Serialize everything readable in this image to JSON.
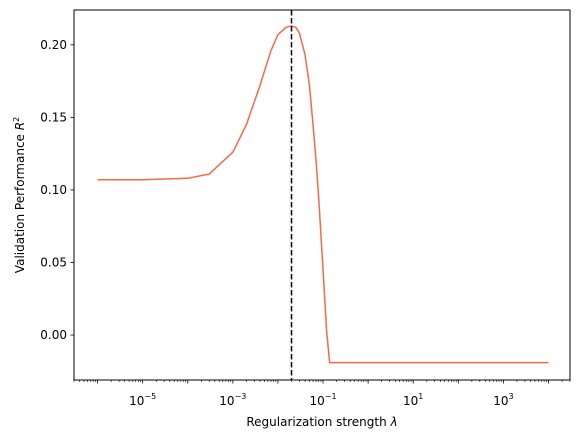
{
  "chart_data": {
    "type": "line",
    "x_scale": "log",
    "xlabel": {
      "text": "Regularization strength ",
      "symbol": "λ"
    },
    "ylabel": {
      "text": "Validation Performance ",
      "symbol": "R",
      "sup": "2"
    },
    "xlim": [
      3e-07,
      30000.0
    ],
    "ylim": [
      -0.031,
      0.224
    ],
    "x_ticks": [
      {
        "value": 1e-05,
        "base": "10",
        "exp": "−5"
      },
      {
        "value": 0.001,
        "base": "10",
        "exp": "−3"
      },
      {
        "value": 0.1,
        "base": "10",
        "exp": "−1"
      },
      {
        "value": 10,
        "base": "10",
        "exp": "1"
      },
      {
        "value": 1000,
        "base": "10",
        "exp": "3"
      }
    ],
    "y_ticks": [
      {
        "value": 0.0,
        "label": "0.00"
      },
      {
        "value": 0.05,
        "label": "0.05"
      },
      {
        "value": 0.1,
        "label": "0.10"
      },
      {
        "value": 0.15,
        "label": "0.15"
      },
      {
        "value": 0.2,
        "label": "0.20"
      }
    ],
    "series": [
      {
        "color": "#f4694a",
        "x": [
          1e-06,
          1e-05,
          0.0001,
          0.0003,
          0.001,
          0.002,
          0.004,
          0.007,
          0.01,
          0.015,
          0.02,
          0.025,
          0.03,
          0.04,
          0.05,
          0.06,
          0.07,
          0.08,
          0.1,
          0.12,
          0.14,
          10000
        ],
        "y": [
          0.107,
          0.107,
          0.108,
          0.111,
          0.126,
          0.145,
          0.172,
          0.196,
          0.207,
          0.212,
          0.213,
          0.212,
          0.208,
          0.193,
          0.172,
          0.145,
          0.12,
          0.095,
          0.045,
          0.003,
          -0.019,
          -0.019
        ]
      }
    ],
    "vline": {
      "x": 0.02,
      "color": "#000000",
      "style": "dashed"
    },
    "grid": false,
    "legend": "none"
  }
}
